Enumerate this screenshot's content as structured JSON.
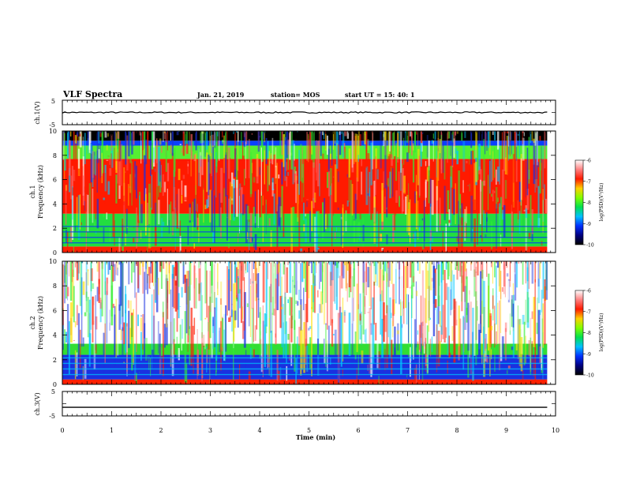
{
  "header": {
    "title": "VLF Spectra",
    "date": "Jan. 21, 2019",
    "station": "station= MOS",
    "start_time": "start UT = 15: 40: 1"
  },
  "chart_data": [
    {
      "type": "line",
      "id": "ch1_voltage",
      "ylabel": "ch.1(V)",
      "yticks": [
        "5",
        "-5"
      ],
      "ylim": [
        -5,
        5
      ],
      "xlim": [
        0,
        10
      ],
      "series": [
        {
          "x": [
            0,
            9.83
          ],
          "values": [
            0,
            0
          ],
          "color": "#000000"
        }
      ]
    },
    {
      "type": "heatmap",
      "id": "ch1_spectrogram",
      "ylabel": "ch.1\nFrequency (kHz)",
      "ylim": [
        0,
        10
      ],
      "yticks": [
        "0",
        "2",
        "4",
        "6",
        "8",
        "10"
      ],
      "xlim": [
        0,
        10
      ],
      "data_end_x": 9.83,
      "bands": [
        {
          "from": 0,
          "to": 0.5,
          "color": "#ff2000"
        },
        {
          "from": 0.5,
          "to": 3.2,
          "color": "#22dd40"
        },
        {
          "from": 3.2,
          "to": 7.7,
          "color": "#ff1a00"
        },
        {
          "from": 7.7,
          "to": 8.8,
          "color": "#55ee33"
        },
        {
          "from": 8.8,
          "to": 9.2,
          "color": "#0a40ff"
        },
        {
          "from": 9.2,
          "to": 10,
          "color": "#000000"
        }
      ],
      "colorbar": {
        "label": "log(PSD)(V²/Hz)",
        "ticks": [
          "-6",
          "-7",
          "-8",
          "-9",
          "-10"
        ],
        "range": [
          -10,
          -6
        ]
      }
    },
    {
      "type": "heatmap",
      "id": "ch2_spectrogram",
      "ylabel": "ch.2\nFrequency (kHz)",
      "ylim": [
        0,
        10
      ],
      "yticks": [
        "0",
        "2",
        "4",
        "6",
        "8",
        "10"
      ],
      "xlim": [
        0,
        10
      ],
      "data_end_x": 9.83,
      "bands": [
        {
          "from": 0,
          "to": 0.4,
          "color": "#ff2000"
        },
        {
          "from": 0.4,
          "to": 2.4,
          "color": "#1a30e0"
        },
        {
          "from": 2.4,
          "to": 3.3,
          "color": "#33dd33"
        },
        {
          "from": 3.3,
          "to": 10,
          "color": "#ffffff"
        }
      ],
      "colorbar": {
        "label": "log(PSD)(V²/Hz)",
        "ticks": [
          "-6",
          "-7",
          "-8",
          "-9",
          "-10"
        ],
        "range": [
          -10,
          -6
        ]
      }
    },
    {
      "type": "line",
      "id": "ch3_voltage",
      "ylabel": "ch.3(V)",
      "yticks": [
        "5",
        "-5"
      ],
      "ylim": [
        -5,
        5
      ],
      "xlim": [
        0,
        10
      ],
      "xticks": [
        "0",
        "1",
        "2",
        "3",
        "4",
        "5",
        "6",
        "7",
        "8",
        "9",
        "10"
      ],
      "xlabel": "Time (min)",
      "series": [
        {
          "x": [
            0,
            9.83
          ],
          "values": [
            -1.5,
            -1.5
          ],
          "color": "#000000"
        }
      ]
    }
  ],
  "colorbar_palette": [
    "#ffffff",
    "#ff8080",
    "#ff1a00",
    "#ffd000",
    "#80ff00",
    "#00e050",
    "#00c0ff",
    "#0030ff",
    "#000080",
    "#000000"
  ]
}
